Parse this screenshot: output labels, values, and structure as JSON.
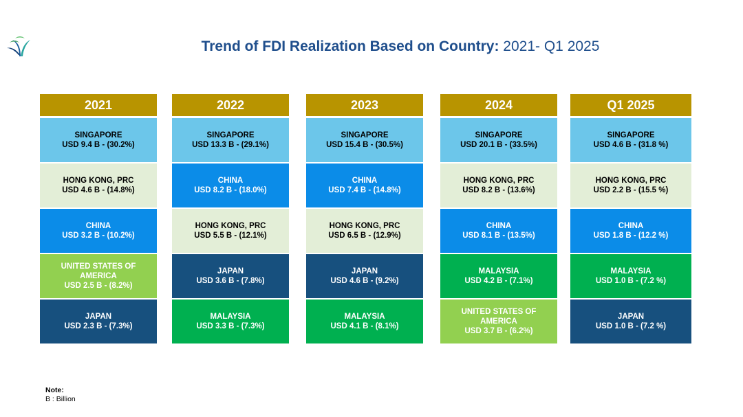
{
  "header": {
    "title_bold": "Trend of FDI Realization Based on Country:",
    "title_rest": "2021- Q1 2025",
    "logo_icon": "leaf-logo-icon"
  },
  "colors": {
    "header_gold": "#b89400",
    "singapore": "#6cc6ea",
    "hong_kong": "#e3eed7",
    "china": "#0b8ce8",
    "usa": "#92d050",
    "japan": "#17507e",
    "malaysia": "#00b050"
  },
  "columns": [
    {
      "year": "2021",
      "cells": [
        {
          "country": "SINGAPORE",
          "value": "USD 9.4 B - (30.2%)",
          "color_key": "singapore"
        },
        {
          "country": "HONG KONG, PRC",
          "value": "USD 4.6 B - (14.8%)",
          "color_key": "hong_kong"
        },
        {
          "country": "CHINA",
          "value": "USD 3.2 B - (10.2%)",
          "color_key": "china"
        },
        {
          "country": "UNITED STATES OF AMERICA",
          "value": "USD 2.5 B - (8.2%)",
          "color_key": "usa"
        },
        {
          "country": "JAPAN",
          "value": "USD 2.3 B - (7.3%)",
          "color_key": "japan"
        }
      ]
    },
    {
      "year": "2022",
      "cells": [
        {
          "country": "SINGAPORE",
          "value": "USD 13.3 B - (29.1%)",
          "color_key": "singapore"
        },
        {
          "country": "CHINA",
          "value": "USD 8.2 B - (18.0%)",
          "color_key": "china"
        },
        {
          "country": "HONG KONG, PRC",
          "value": "USD 5.5 B - (12.1%)",
          "color_key": "hong_kong"
        },
        {
          "country": "JAPAN",
          "value": "USD 3.6 B - (7.8%)",
          "color_key": "japan"
        },
        {
          "country": "MALAYSIA",
          "value": "USD 3.3 B - (7.3%)",
          "color_key": "malaysia"
        }
      ]
    },
    {
      "year": "2023",
      "cells": [
        {
          "country": "SINGAPORE",
          "value": "USD 15.4 B - (30.5%)",
          "color_key": "singapore"
        },
        {
          "country": "CHINA",
          "value": "USD 7.4 B - (14.8%)",
          "color_key": "china"
        },
        {
          "country": "HONG KONG, PRC",
          "value": "USD 6.5 B - (12.9%)",
          "color_key": "hong_kong"
        },
        {
          "country": "JAPAN",
          "value": "USD 4.6 B - (9.2%)",
          "color_key": "japan"
        },
        {
          "country": "MALAYSIA",
          "value": "USD 4.1 B - (8.1%)",
          "color_key": "malaysia"
        }
      ]
    },
    {
      "year": "2024",
      "cells": [
        {
          "country": "SINGAPORE",
          "value": "USD 20.1 B - (33.5%)",
          "color_key": "singapore"
        },
        {
          "country": "HONG KONG, PRC",
          "value": "USD 8.2 B - (13.6%)",
          "color_key": "hong_kong"
        },
        {
          "country": "CHINA",
          "value": "USD 8.1 B - (13.5%)",
          "color_key": "china"
        },
        {
          "country": "MALAYSIA",
          "value": "USD 4.2 B - (7.1%)",
          "color_key": "malaysia"
        },
        {
          "country": "UNITED STATES OF AMERICA",
          "value": "USD 3.7 B - (6.2%)",
          "color_key": "usa"
        }
      ]
    },
    {
      "year": "Q1 2025",
      "cells": [
        {
          "country": "SINGAPORE",
          "value": "USD 4.6 B - (31.8 %)",
          "color_key": "singapore"
        },
        {
          "country": "HONG KONG, PRC",
          "value": "USD 2.2 B - (15.5 %)",
          "color_key": "hong_kong"
        },
        {
          "country": "CHINA",
          "value": "USD 1.8 B - (12.2 %)",
          "color_key": "china"
        },
        {
          "country": "MALAYSIA",
          "value": "USD 1.0 B - (7.2 %)",
          "color_key": "malaysia"
        },
        {
          "country": "JAPAN",
          "value": "USD 1.0 B - (7.2 %)",
          "color_key": "japan"
        }
      ]
    }
  ],
  "note": {
    "title": "Note:",
    "text": "B : Billion"
  }
}
